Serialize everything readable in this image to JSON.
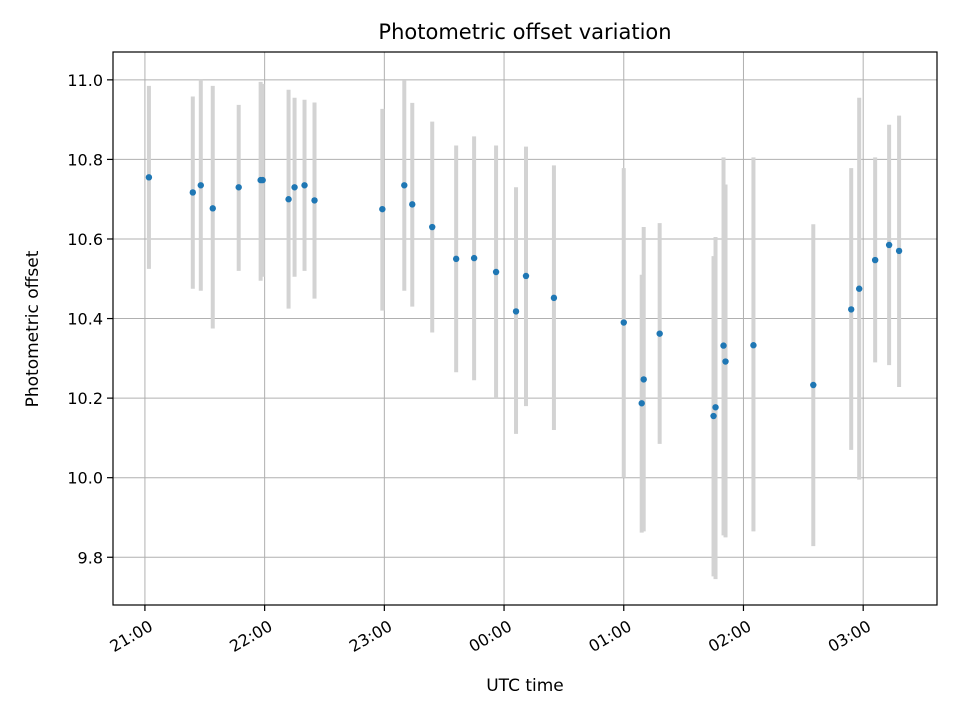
{
  "chart_data": {
    "type": "scatter",
    "title": "Photometric offset variation",
    "xlabel": "UTC time",
    "ylabel": "Photometric offset",
    "x_axis_type": "time",
    "xlim": [
      "20:44",
      "03:37"
    ],
    "ylim": [
      9.68,
      11.07
    ],
    "grid": true,
    "x_ticks": [
      "21:00",
      "22:00",
      "23:00",
      "00:00",
      "01:00",
      "02:00",
      "03:00"
    ],
    "y_ticks": [
      "9.8",
      "10.0",
      "10.2",
      "10.4",
      "10.6",
      "10.8",
      "11.0"
    ],
    "marker_color": "#1f77b4",
    "errorbar_color": "#d3d3d3",
    "points": [
      {
        "x": "21:02",
        "y": 10.755,
        "ylow": 10.525,
        "yhigh": 10.985
      },
      {
        "x": "21:24",
        "y": 10.717,
        "ylow": 10.475,
        "yhigh": 10.958
      },
      {
        "x": "21:28",
        "y": 10.735,
        "ylow": 10.47,
        "yhigh": 11.002
      },
      {
        "x": "21:34",
        "y": 10.677,
        "ylow": 10.375,
        "yhigh": 10.985
      },
      {
        "x": "21:47",
        "y": 10.73,
        "ylow": 10.52,
        "yhigh": 10.937
      },
      {
        "x": "21:58",
        "y": 10.748,
        "ylow": 10.495,
        "yhigh": 10.995
      },
      {
        "x": "21:59",
        "y": 10.748,
        "ylow": 10.505,
        "yhigh": 10.99
      },
      {
        "x": "22:12",
        "y": 10.7,
        "ylow": 10.425,
        "yhigh": 10.975
      },
      {
        "x": "22:15",
        "y": 10.73,
        "ylow": 10.505,
        "yhigh": 10.955
      },
      {
        "x": "22:20",
        "y": 10.735,
        "ylow": 10.52,
        "yhigh": 10.95
      },
      {
        "x": "22:25",
        "y": 10.697,
        "ylow": 10.45,
        "yhigh": 10.943
      },
      {
        "x": "22:59",
        "y": 10.675,
        "ylow": 10.42,
        "yhigh": 10.927
      },
      {
        "x": "23:10",
        "y": 10.735,
        "ylow": 10.47,
        "yhigh": 10.998
      },
      {
        "x": "23:14",
        "y": 10.687,
        "ylow": 10.43,
        "yhigh": 10.942
      },
      {
        "x": "23:24",
        "y": 10.63,
        "ylow": 10.365,
        "yhigh": 10.895
      },
      {
        "x": "23:36",
        "y": 10.55,
        "ylow": 10.265,
        "yhigh": 10.835
      },
      {
        "x": "23:45",
        "y": 10.552,
        "ylow": 10.245,
        "yhigh": 10.858
      },
      {
        "x": "23:56",
        "y": 10.517,
        "ylow": 10.2,
        "yhigh": 10.835
      },
      {
        "x": "00:06",
        "y": 10.418,
        "ylow": 10.11,
        "yhigh": 10.73
      },
      {
        "x": "00:11",
        "y": 10.507,
        "ylow": 10.18,
        "yhigh": 10.832
      },
      {
        "x": "00:25",
        "y": 10.452,
        "ylow": 10.12,
        "yhigh": 10.785
      },
      {
        "x": "01:00",
        "y": 10.39,
        "ylow": 10.0,
        "yhigh": 10.778
      },
      {
        "x": "01:09",
        "y": 10.187,
        "ylow": 9.862,
        "yhigh": 10.51
      },
      {
        "x": "01:10",
        "y": 10.247,
        "ylow": 9.865,
        "yhigh": 10.63
      },
      {
        "x": "01:18",
        "y": 10.362,
        "ylow": 10.085,
        "yhigh": 10.64
      },
      {
        "x": "01:45",
        "y": 10.155,
        "ylow": 9.752,
        "yhigh": 10.557
      },
      {
        "x": "01:46",
        "y": 10.177,
        "ylow": 9.745,
        "yhigh": 10.605
      },
      {
        "x": "01:50",
        "y": 10.332,
        "ylow": 9.855,
        "yhigh": 10.805
      },
      {
        "x": "01:51",
        "y": 10.292,
        "ylow": 9.85,
        "yhigh": 10.737
      },
      {
        "x": "02:05",
        "y": 10.333,
        "ylow": 9.865,
        "yhigh": 10.805
      },
      {
        "x": "02:35",
        "y": 10.233,
        "ylow": 9.828,
        "yhigh": 10.637
      },
      {
        "x": "02:54",
        "y": 10.423,
        "ylow": 10.07,
        "yhigh": 10.778
      },
      {
        "x": "02:58",
        "y": 10.475,
        "ylow": 9.995,
        "yhigh": 10.955
      },
      {
        "x": "03:06",
        "y": 10.547,
        "ylow": 10.29,
        "yhigh": 10.805
      },
      {
        "x": "03:13",
        "y": 10.585,
        "ylow": 10.283,
        "yhigh": 10.887
      },
      {
        "x": "03:18",
        "y": 10.57,
        "ylow": 10.228,
        "yhigh": 10.91
      }
    ]
  }
}
